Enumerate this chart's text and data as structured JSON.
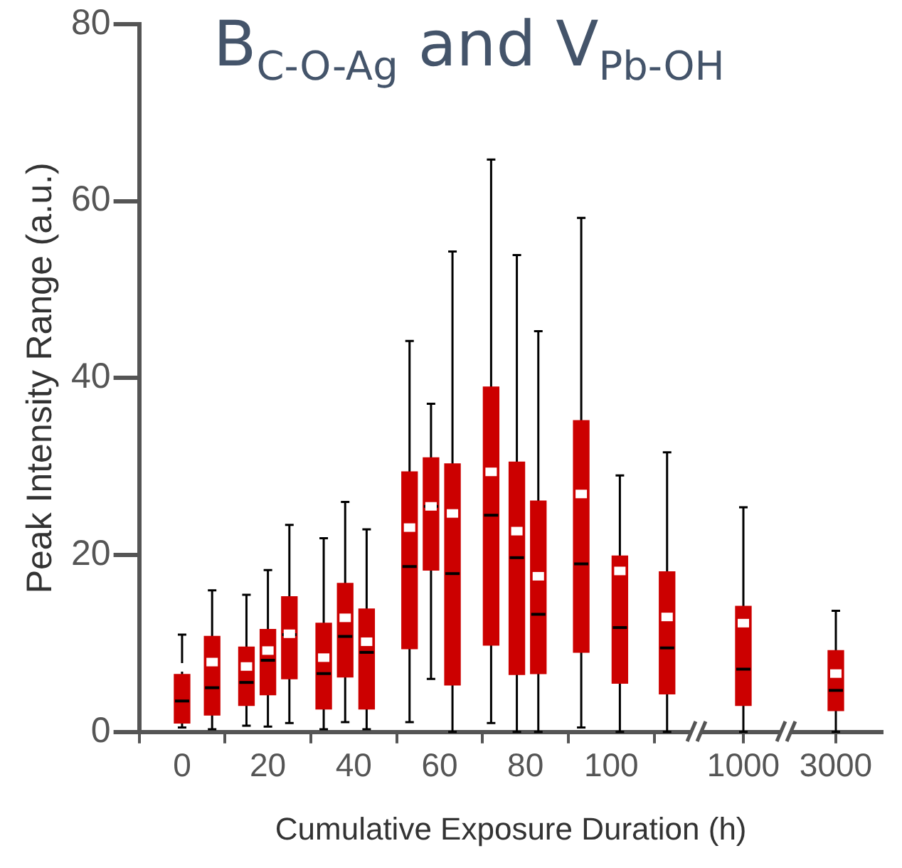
{
  "chart_data": [
    {
      "type": "box",
      "title": "B$_{C-O-Ag}$ and V$_{Pb-OH}$",
      "xlabel": "Cumulative Exposure Duration (h)",
      "ylabel": "Peak Intensity Range (a.u.)",
      "x": [
        0,
        7,
        15,
        20,
        25,
        33,
        38,
        43,
        53,
        58,
        63,
        72,
        78,
        83,
        93,
        102,
        113
      ],
      "color": "#cc0000",
      "boxes": [
        {
          "low": 0.5,
          "q1": 1.0,
          "median": 3.5,
          "q3": 6.5,
          "high": 11.0,
          "mean": 7.3
        },
        {
          "low": 0.3,
          "q1": 1.9,
          "median": 5.0,
          "q3": 10.8,
          "high": 16.0,
          "mean": 7.9
        },
        {
          "low": 0.7,
          "q1": 3.0,
          "median": 5.6,
          "q3": 9.6,
          "high": 15.5,
          "mean": 7.4
        },
        {
          "low": 0.6,
          "q1": 4.2,
          "median": 8.1,
          "q3": 11.6,
          "high": 18.3,
          "mean": 9.2
        },
        {
          "low": 1.0,
          "q1": 6.0,
          "median": 11.0,
          "q3": 15.3,
          "high": 23.4,
          "mean": 11.1
        },
        {
          "low": 0.3,
          "q1": 2.6,
          "median": 6.6,
          "q3": 12.3,
          "high": 21.9,
          "mean": 8.4
        },
        {
          "low": 1.1,
          "q1": 6.2,
          "median": 10.8,
          "q3": 16.8,
          "high": 26.0,
          "mean": 12.9
        },
        {
          "low": 0.3,
          "q1": 2.6,
          "median": 9.0,
          "q3": 13.9,
          "high": 22.9,
          "mean": 10.2
        },
        {
          "low": 1.1,
          "q1": 9.4,
          "median": 18.7,
          "q3": 29.4,
          "high": 44.2,
          "mean": 23.1
        },
        {
          "low": 6.0,
          "q1": 18.3,
          "median": 25.5,
          "q3": 31.0,
          "high": 37.1,
          "mean": 25.5
        },
        {
          "low": 0,
          "q1": 5.3,
          "median": 17.9,
          "q3": 30.3,
          "high": 54.3,
          "mean": 24.7
        },
        {
          "low": 1.0,
          "q1": 9.8,
          "median": 24.5,
          "q3": 39.0,
          "high": 64.7,
          "mean": 29.4
        },
        {
          "low": 0,
          "q1": 6.5,
          "median": 19.7,
          "q3": 30.5,
          "high": 53.9,
          "mean": 22.7
        },
        {
          "low": 0,
          "q1": 6.6,
          "median": 13.3,
          "q3": 26.1,
          "high": 45.3,
          "mean": 17.6
        },
        {
          "low": 0.5,
          "q1": 9.0,
          "median": 19.0,
          "q3": 35.2,
          "high": 58.1,
          "mean": 26.9
        },
        {
          "low": 0,
          "q1": 5.5,
          "median": 11.8,
          "q3": 19.9,
          "high": 29.0,
          "mean": 18.2
        },
        {
          "low": 0,
          "q1": 4.3,
          "median": 9.5,
          "q3": 18.1,
          "high": 31.6,
          "mean": 13.0
        }
      ],
      "xlim": [
        -10,
        120
      ],
      "xticks": [
        0,
        20,
        40,
        60,
        80,
        100
      ],
      "ylim": [
        0,
        80
      ],
      "yticks": [
        0,
        20,
        40,
        60,
        80
      ]
    },
    {
      "type": "box",
      "categories": [
        "1000"
      ],
      "color": "#cc0000",
      "boxes": [
        {
          "low": 0,
          "q1": 3.0,
          "median": 7.1,
          "q3": 14.2,
          "high": 25.4,
          "mean": 12.3
        }
      ],
      "ylim": [
        0,
        80
      ],
      "tick_labels": "x"
    },
    {
      "type": "box",
      "categories": [
        "3000"
      ],
      "color": "#cc0000",
      "boxes": [
        {
          "low": 0,
          "q1": 2.4,
          "median": 4.7,
          "q3": 9.2,
          "high": 13.7,
          "mean": 6.6
        }
      ],
      "ylim": [
        0,
        80
      ],
      "tick_labels": "x"
    }
  ]
}
